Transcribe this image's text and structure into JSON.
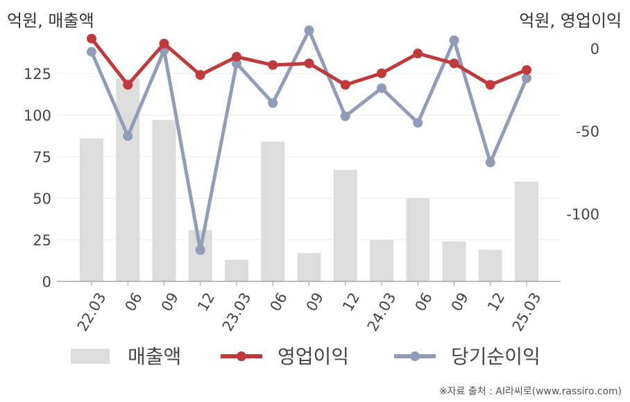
{
  "chart_data": {
    "type": "bar+line",
    "left_axis_title": "억원, 매출액",
    "right_axis_title": "억원, 영업이익",
    "categories": [
      "22.03",
      "06",
      "09",
      "12",
      "23.03",
      "06",
      "09",
      "12",
      "24.03",
      "06",
      "09",
      "12",
      "25.03"
    ],
    "left_ylim": [
      0,
      140
    ],
    "left_ticks": [
      0,
      25,
      50,
      75,
      100,
      125
    ],
    "right_ylim": [
      -141,
      0
    ],
    "right_ticks": [
      0,
      -50,
      -100
    ],
    "series": [
      {
        "name": "매출액",
        "type": "bar",
        "axis": "left",
        "color": "#dddddd",
        "values": [
          86,
          122,
          97,
          31,
          13,
          84,
          17,
          67,
          25,
          50,
          24,
          19,
          60
        ]
      },
      {
        "name": "영업이익",
        "type": "line",
        "axis": "right",
        "color": "#c0393b",
        "values": [
          6,
          -22,
          3,
          -16,
          -5,
          -10,
          -9,
          -22,
          -15,
          -3,
          -9,
          -22,
          -13
        ]
      },
      {
        "name": "당기순이익",
        "type": "line",
        "axis": "right",
        "color": "#909cb8",
        "values": [
          -2,
          -53,
          -1,
          -122,
          -9,
          -33,
          11,
          -41,
          -24,
          -45,
          5,
          -69,
          -18
        ]
      }
    ],
    "grid": true,
    "legend_position": "bottom"
  },
  "source": "※자료 출처 : AI라씨로(www.rassiro.com)"
}
